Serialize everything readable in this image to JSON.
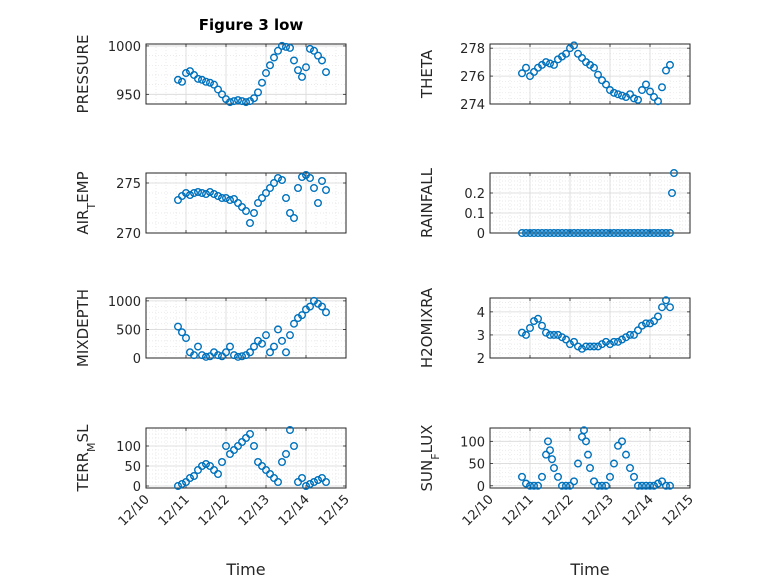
{
  "figure": {
    "title": "Figure 3 low",
    "marker_color": "#0072BD"
  },
  "chart_data": [
    {
      "type": "scatter",
      "ylabel": "PRESSURE",
      "xlabel": "",
      "xlim": [
        0,
        5
      ],
      "ylim": [
        940,
        1002
      ],
      "yticks": [
        950,
        1000
      ],
      "yticklabels": [
        "950",
        "1000"
      ],
      "xticklabels": [],
      "grid": true,
      "x": [
        0.8,
        0.9,
        1.0,
        1.1,
        1.2,
        1.3,
        1.4,
        1.5,
        1.6,
        1.7,
        1.8,
        1.9,
        2.0,
        2.1,
        2.2,
        2.3,
        2.4,
        2.5,
        2.6,
        2.7,
        2.8,
        2.9,
        3.0,
        3.1,
        3.2,
        3.3,
        3.4,
        3.5,
        3.6,
        3.7,
        3.8,
        3.9,
        4.0,
        4.1,
        4.2,
        4.3,
        4.4,
        4.5
      ],
      "y": [
        965,
        963,
        972,
        974,
        970,
        966,
        965,
        963,
        962,
        960,
        955,
        950,
        945,
        942,
        943,
        944,
        943,
        942,
        943,
        946,
        952,
        962,
        972,
        980,
        988,
        995,
        1000,
        999,
        998,
        985,
        975,
        968,
        978,
        997,
        995,
        990,
        985,
        973
      ]
    },
    {
      "type": "scatter",
      "ylabel": "THETA",
      "xlabel": "",
      "xlim": [
        0,
        5
      ],
      "ylim": [
        274,
        278.3
      ],
      "yticks": [
        274,
        276,
        278
      ],
      "yticklabels": [
        "274",
        "276",
        "278"
      ],
      "xticklabels": [],
      "grid": true,
      "x": [
        0.8,
        0.9,
        1.0,
        1.1,
        1.2,
        1.3,
        1.4,
        1.5,
        1.6,
        1.7,
        1.8,
        1.9,
        2.0,
        2.1,
        2.2,
        2.3,
        2.4,
        2.5,
        2.6,
        2.7,
        2.8,
        2.9,
        3.0,
        3.1,
        3.2,
        3.3,
        3.4,
        3.5,
        3.6,
        3.7,
        3.8,
        3.9,
        4.0,
        4.1,
        4.2,
        4.3,
        4.4,
        4.5
      ],
      "y": [
        276.2,
        276.6,
        276.0,
        276.3,
        276.6,
        276.8,
        277.0,
        276.9,
        276.8,
        277.2,
        277.4,
        277.6,
        278.0,
        278.2,
        277.6,
        277.3,
        277.0,
        276.8,
        276.6,
        276.1,
        275.7,
        275.4,
        275.0,
        274.8,
        274.7,
        274.6,
        274.5,
        274.7,
        274.4,
        274.3,
        275.0,
        275.4,
        274.9,
        274.5,
        274.2,
        275.2,
        276.4,
        276.8
      ]
    },
    {
      "type": "scatter",
      "ylabel": "AIR_TEMP",
      "xlabel": "",
      "xlim": [
        0,
        5
      ],
      "ylim": [
        270,
        276
      ],
      "yticks": [
        270,
        275
      ],
      "yticklabels": [
        "270",
        "275"
      ],
      "xticklabels": [],
      "grid": true,
      "x": [
        0.8,
        0.9,
        1.0,
        1.1,
        1.2,
        1.3,
        1.4,
        1.5,
        1.6,
        1.7,
        1.8,
        1.9,
        2.0,
        2.1,
        2.2,
        2.3,
        2.4,
        2.5,
        2.6,
        2.7,
        2.8,
        2.9,
        3.0,
        3.1,
        3.2,
        3.3,
        3.4,
        3.5,
        3.6,
        3.7,
        3.8,
        3.9,
        4.0,
        4.1,
        4.2,
        4.3,
        4.4,
        4.5
      ],
      "y": [
        273.3,
        273.7,
        274.0,
        273.8,
        274.0,
        274.1,
        274.0,
        273.9,
        274.1,
        273.9,
        273.7,
        273.5,
        273.5,
        273.3,
        273.4,
        273.0,
        272.6,
        272.2,
        271.0,
        272.0,
        273.0,
        273.5,
        274.0,
        274.5,
        275.0,
        275.5,
        275.3,
        273.5,
        272.0,
        271.5,
        274.5,
        275.6,
        275.8,
        275.5,
        274.5,
        273.0,
        275.2,
        274.3
      ]
    },
    {
      "type": "scatter",
      "ylabel": "RAINFALL",
      "xlabel": "",
      "xlim": [
        0,
        5
      ],
      "ylim": [
        0,
        0.3
      ],
      "yticks": [
        0,
        0.1,
        0.2
      ],
      "yticklabels": [
        "0",
        "0.1",
        "0.2"
      ],
      "xticklabels": [],
      "grid": true,
      "x": [
        0.8,
        0.9,
        1.0,
        1.1,
        1.2,
        1.3,
        1.4,
        1.5,
        1.6,
        1.7,
        1.8,
        1.9,
        2.0,
        2.1,
        2.2,
        2.3,
        2.4,
        2.5,
        2.6,
        2.7,
        2.8,
        2.9,
        3.0,
        3.1,
        3.2,
        3.3,
        3.4,
        3.5,
        3.6,
        3.7,
        3.8,
        3.9,
        4.0,
        4.1,
        4.2,
        4.3,
        4.4,
        4.5,
        4.55,
        4.6
      ],
      "y": [
        0,
        0,
        0,
        0,
        0,
        0,
        0,
        0,
        0,
        0,
        0,
        0,
        0,
        0,
        0,
        0,
        0,
        0,
        0,
        0,
        0,
        0,
        0,
        0,
        0,
        0,
        0,
        0,
        0,
        0,
        0,
        0,
        0,
        0,
        0,
        0,
        0,
        0,
        0.2,
        0.3
      ]
    },
    {
      "type": "scatter",
      "ylabel": "MIXDEPTH",
      "xlabel": "",
      "xlim": [
        0,
        5
      ],
      "ylim": [
        0,
        1050
      ],
      "yticks": [
        0,
        500,
        1000
      ],
      "yticklabels": [
        "0",
        "500",
        "1000"
      ],
      "xticklabels": [],
      "grid": true,
      "x": [
        0.8,
        0.9,
        1.0,
        1.1,
        1.2,
        1.3,
        1.4,
        1.5,
        1.6,
        1.7,
        1.8,
        1.9,
        2.0,
        2.1,
        2.2,
        2.3,
        2.4,
        2.5,
        2.6,
        2.7,
        2.8,
        2.9,
        3.0,
        3.1,
        3.2,
        3.3,
        3.4,
        3.5,
        3.6,
        3.7,
        3.8,
        3.9,
        4.0,
        4.1,
        4.2,
        4.3,
        4.4,
        4.5
      ],
      "y": [
        550,
        450,
        350,
        100,
        50,
        200,
        50,
        20,
        30,
        100,
        50,
        30,
        100,
        200,
        50,
        20,
        30,
        50,
        100,
        200,
        300,
        250,
        400,
        100,
        200,
        500,
        300,
        100,
        400,
        600,
        700,
        750,
        850,
        900,
        1000,
        950,
        900,
        800
      ]
    },
    {
      "type": "scatter",
      "ylabel": "H2OMIXRA",
      "xlabel": "",
      "xlim": [
        0,
        5
      ],
      "ylim": [
        2,
        4.6
      ],
      "yticks": [
        2,
        3,
        4
      ],
      "yticklabels": [
        "2",
        "3",
        "4"
      ],
      "xticklabels": [],
      "grid": true,
      "x": [
        0.8,
        0.9,
        1.0,
        1.1,
        1.2,
        1.3,
        1.4,
        1.5,
        1.6,
        1.7,
        1.8,
        1.9,
        2.0,
        2.1,
        2.2,
        2.3,
        2.4,
        2.5,
        2.6,
        2.7,
        2.8,
        2.9,
        3.0,
        3.1,
        3.2,
        3.3,
        3.4,
        3.5,
        3.6,
        3.7,
        3.8,
        3.9,
        4.0,
        4.1,
        4.2,
        4.3,
        4.4,
        4.5
      ],
      "y": [
        3.1,
        3.0,
        3.3,
        3.6,
        3.7,
        3.4,
        3.1,
        3.0,
        3.0,
        3.0,
        2.9,
        2.8,
        2.6,
        2.7,
        2.5,
        2.4,
        2.5,
        2.5,
        2.5,
        2.5,
        2.6,
        2.7,
        2.6,
        2.7,
        2.7,
        2.8,
        2.9,
        3.0,
        3.0,
        3.2,
        3.4,
        3.5,
        3.5,
        3.6,
        3.8,
        4.2,
        4.5,
        4.2
      ]
    },
    {
      "type": "scatter",
      "ylabel": "TERR_MSL",
      "xlabel": "Time",
      "xlim": [
        0,
        5
      ],
      "ylim": [
        -5,
        145
      ],
      "yticks": [
        0,
        50,
        100
      ],
      "yticklabels": [
        "0",
        "50",
        "100"
      ],
      "xticklabels": [
        "12/10",
        "12/11",
        "12/12",
        "12/13",
        "12/14",
        "12/15"
      ],
      "grid": true,
      "x": [
        0.8,
        0.9,
        1.0,
        1.1,
        1.2,
        1.3,
        1.4,
        1.5,
        1.6,
        1.7,
        1.8,
        1.9,
        2.0,
        2.1,
        2.2,
        2.3,
        2.4,
        2.5,
        2.6,
        2.7,
        2.8,
        2.9,
        3.0,
        3.1,
        3.2,
        3.3,
        3.4,
        3.5,
        3.6,
        3.7,
        3.8,
        3.9,
        4.0,
        4.1,
        4.2,
        4.3,
        4.4,
        4.5
      ],
      "y": [
        0,
        5,
        10,
        20,
        25,
        40,
        50,
        55,
        50,
        40,
        30,
        60,
        100,
        80,
        90,
        100,
        110,
        120,
        130,
        100,
        60,
        50,
        40,
        30,
        20,
        10,
        60,
        80,
        140,
        100,
        10,
        20,
        0,
        5,
        10,
        15,
        20,
        10
      ]
    },
    {
      "type": "scatter",
      "ylabel": "SUN_FLUX",
      "xlabel": "Time",
      "xlim": [
        0,
        5
      ],
      "ylim": [
        -5,
        130
      ],
      "yticks": [
        0,
        50,
        100
      ],
      "yticklabels": [
        "0",
        "50",
        "100"
      ],
      "xticklabels": [
        "12/10",
        "12/11",
        "12/12",
        "12/13",
        "12/14",
        "12/15"
      ],
      "grid": true,
      "x": [
        0.8,
        0.9,
        1.0,
        1.1,
        1.2,
        1.3,
        1.4,
        1.45,
        1.5,
        1.55,
        1.6,
        1.7,
        1.8,
        1.9,
        2.0,
        2.1,
        2.2,
        2.3,
        2.35,
        2.4,
        2.45,
        2.5,
        2.6,
        2.7,
        2.8,
        2.9,
        3.0,
        3.1,
        3.2,
        3.3,
        3.4,
        3.5,
        3.6,
        3.7,
        3.8,
        3.9,
        4.0,
        4.1,
        4.2,
        4.3,
        4.4,
        4.5
      ],
      "y": [
        20,
        5,
        0,
        0,
        0,
        20,
        70,
        100,
        80,
        60,
        40,
        20,
        0,
        0,
        0,
        10,
        50,
        110,
        125,
        100,
        70,
        40,
        10,
        0,
        0,
        0,
        20,
        50,
        90,
        100,
        70,
        40,
        20,
        0,
        0,
        0,
        0,
        0,
        5,
        10,
        0,
        0
      ]
    }
  ]
}
